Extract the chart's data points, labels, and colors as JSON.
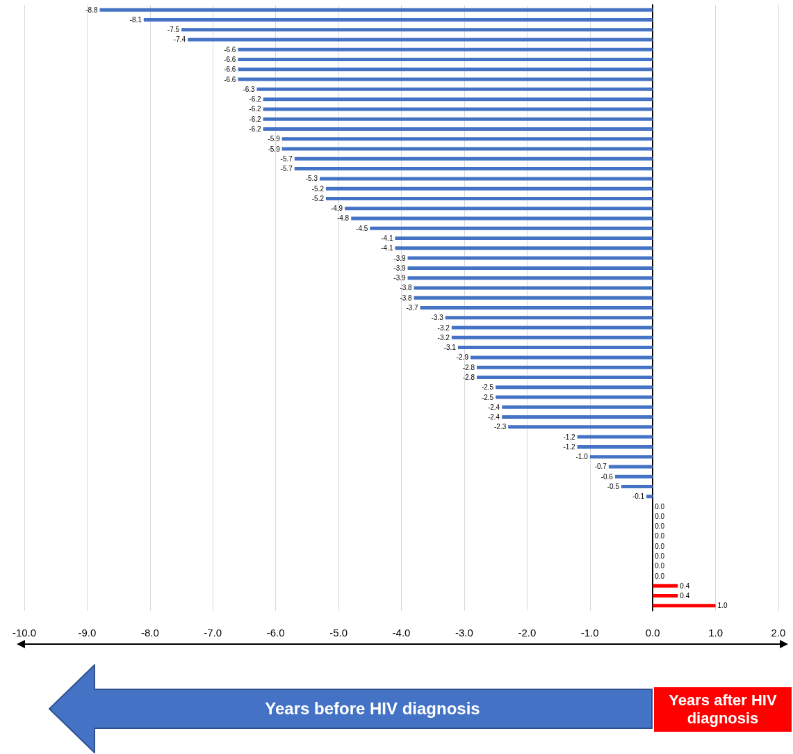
{
  "chart_data": {
    "type": "bar",
    "orientation": "horizontal",
    "categories": [
      null,
      null,
      null,
      null,
      null,
      null,
      null,
      null,
      null,
      null,
      null,
      null,
      null,
      null,
      null,
      null,
      null,
      null,
      null,
      null,
      null,
      null,
      null,
      null,
      null,
      null,
      null,
      null,
      null,
      null,
      null,
      null,
      null,
      null,
      null,
      null,
      null,
      null,
      null,
      null,
      null,
      null,
      null,
      null,
      null,
      null,
      null,
      null,
      null,
      null,
      null,
      null,
      null,
      null,
      null,
      null,
      null,
      null,
      null,
      null,
      null
    ],
    "values": [
      -8.8,
      -8.1,
      -7.5,
      -7.4,
      -6.6,
      -6.6,
      -6.6,
      -6.6,
      -6.3,
      -6.2,
      -6.2,
      -6.2,
      -6.2,
      -5.9,
      -5.9,
      -5.7,
      -5.7,
      -5.3,
      -5.2,
      -5.2,
      -4.9,
      -4.8,
      -4.5,
      -4.1,
      -4.1,
      -3.9,
      -3.9,
      -3.9,
      -3.8,
      -3.8,
      -3.7,
      -3.3,
      -3.2,
      -3.2,
      -3.1,
      -2.9,
      -2.8,
      -2.8,
      -2.5,
      -2.5,
      -2.4,
      -2.4,
      -2.3,
      -1.2,
      -1.2,
      -1.0,
      -0.7,
      -0.6,
      -0.5,
      -0.1,
      0,
      0,
      0,
      0,
      0,
      0,
      0,
      0,
      0.4,
      0.4,
      1.0
    ],
    "value_labels": [
      "-8.8",
      "-8.1",
      "-7.5",
      "-7.4",
      "-6.6",
      "-6.6",
      "-6.6",
      "-6.6",
      "-6.3",
      "-6.2",
      "-6.2",
      "-6.2",
      "-6.2",
      "-5.9",
      "-5.9",
      "-5.7",
      "-5.7",
      "-5.3",
      "-5.2",
      "-5.2",
      "-4.9",
      "-4.8",
      "-4.5",
      "-4.1",
      "-4.1",
      "-3.9",
      "-3.9",
      "-3.9",
      "-3.8",
      "-3.8",
      "-3.7",
      "-3.3",
      "-3.2",
      "-3.2",
      "-3.1",
      "-2.9",
      "-2.8",
      "-2.8",
      "-2.5",
      "-2.5",
      "-2.4",
      "-2.4",
      "-2.3",
      "-1.2",
      "-1.2",
      "-1.0",
      "-0.7",
      "-0.6",
      "-0.5",
      "-0.1",
      "0.0",
      "0.0",
      "0.0",
      "0.0",
      "0.0",
      "0.0",
      "0.0",
      "0.0",
      "0.4",
      "0.4",
      "1.0"
    ],
    "colors": [
      "#4472c4",
      "#4472c4",
      "#4472c4",
      "#4472c4",
      "#4472c4",
      "#4472c4",
      "#4472c4",
      "#4472c4",
      "#4472c4",
      "#4472c4",
      "#4472c4",
      "#4472c4",
      "#4472c4",
      "#4472c4",
      "#4472c4",
      "#4472c4",
      "#4472c4",
      "#4472c4",
      "#4472c4",
      "#4472c4",
      "#4472c4",
      "#4472c4",
      "#4472c4",
      "#4472c4",
      "#4472c4",
      "#4472c4",
      "#4472c4",
      "#4472c4",
      "#4472c4",
      "#4472c4",
      "#4472c4",
      "#4472c4",
      "#4472c4",
      "#4472c4",
      "#4472c4",
      "#4472c4",
      "#4472c4",
      "#4472c4",
      "#4472c4",
      "#4472c4",
      "#4472c4",
      "#4472c4",
      "#4472c4",
      "#4472c4",
      "#4472c4",
      "#4472c4",
      "#4472c4",
      "#4472c4",
      "#4472c4",
      "#4472c4",
      "#ff0000",
      "#ff0000",
      "#ff0000",
      "#ff0000",
      "#ff0000",
      "#ff0000",
      "#ff0000",
      "#ff0000",
      "#ff0000",
      "#ff0000",
      "#ff0000"
    ],
    "xlim": [
      -10,
      2
    ],
    "xticks": [
      {
        "value": -10,
        "label": "-10.0"
      },
      {
        "value": -9,
        "label": "-9.0"
      },
      {
        "value": -8,
        "label": "-8.0"
      },
      {
        "value": -7,
        "label": "-7.0"
      },
      {
        "value": -6,
        "label": "-6.0"
      },
      {
        "value": -5,
        "label": "-5.0"
      },
      {
        "value": -4,
        "label": "-4.0"
      },
      {
        "value": -3,
        "label": "-3.0"
      },
      {
        "value": -2,
        "label": "-2.0"
      },
      {
        "value": -1,
        "label": "-1.0"
      },
      {
        "value": 0,
        "label": "0.0"
      },
      {
        "value": 1,
        "label": "1.0"
      },
      {
        "value": 2,
        "label": "2.0"
      }
    ],
    "grid": "x",
    "annotations": [
      "Years before HIV diagnosis",
      "Years after HIV diagnosis"
    ]
  }
}
